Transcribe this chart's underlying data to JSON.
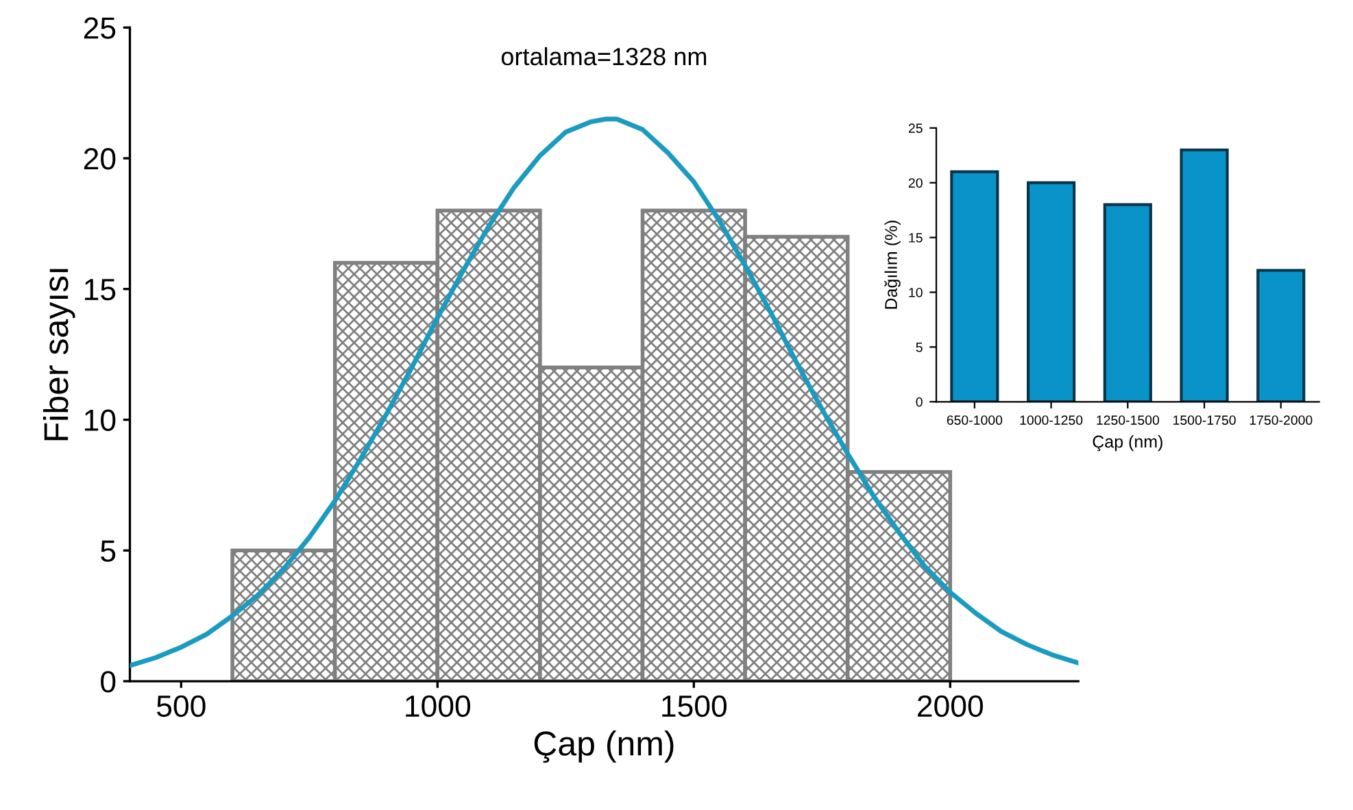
{
  "chart_data": [
    {
      "type": "histogram",
      "xlabel": "Çap (nm)",
      "ylabel": "Fiber sayısı",
      "annotations": [
        "ortalama=1328 nm"
      ],
      "series": [
        {
          "type": "histogram",
          "bins": [
            600,
            800,
            1000,
            1200,
            1400,
            1600,
            1800,
            2000
          ],
          "values": [
            5,
            16,
            18,
            12,
            18,
            17,
            8
          ],
          "color": "#808080"
        },
        {
          "type": "line",
          "color": "#1a9bbf",
          "x": [
            400,
            450,
            500,
            550,
            600,
            650,
            700,
            750,
            800,
            850,
            900,
            950,
            1000,
            1050,
            1100,
            1150,
            1200,
            1250,
            1300,
            1328,
            1350,
            1400,
            1450,
            1500,
            1550,
            1600,
            1650,
            1700,
            1750,
            1800,
            1850,
            1900,
            1950,
            2000,
            2050,
            2100,
            2150,
            2200,
            2250
          ],
          "values": [
            0.6,
            0.9,
            1.3,
            1.8,
            2.5,
            3.3,
            4.3,
            5.5,
            6.9,
            8.5,
            10.2,
            12.0,
            13.9,
            15.7,
            17.4,
            18.9,
            20.1,
            21.0,
            21.4,
            21.5,
            21.5,
            21.1,
            20.2,
            19.1,
            17.6,
            15.9,
            14.1,
            12.2,
            10.4,
            8.7,
            7.1,
            5.7,
            4.4,
            3.4,
            2.6,
            1.9,
            1.4,
            1.0,
            0.7
          ]
        }
      ],
      "xlim": [
        400,
        2250
      ],
      "xticks": [
        500,
        1000,
        1500,
        2000
      ],
      "ylim": [
        0,
        25
      ],
      "yticks": [
        0,
        5,
        10,
        15,
        20,
        25
      ]
    },
    {
      "type": "bar",
      "xlabel": "Çap (nm)",
      "ylabel": "Dağılım (%)",
      "categories": [
        "650-1000",
        "1000-1250",
        "1250-1500",
        "1500-1750",
        "1750-2000"
      ],
      "values": [
        21,
        20,
        18,
        23,
        12
      ],
      "color": "#0a93c8",
      "ylim": [
        0,
        25
      ],
      "yticks": [
        0,
        5,
        10,
        15,
        20,
        25
      ]
    }
  ]
}
